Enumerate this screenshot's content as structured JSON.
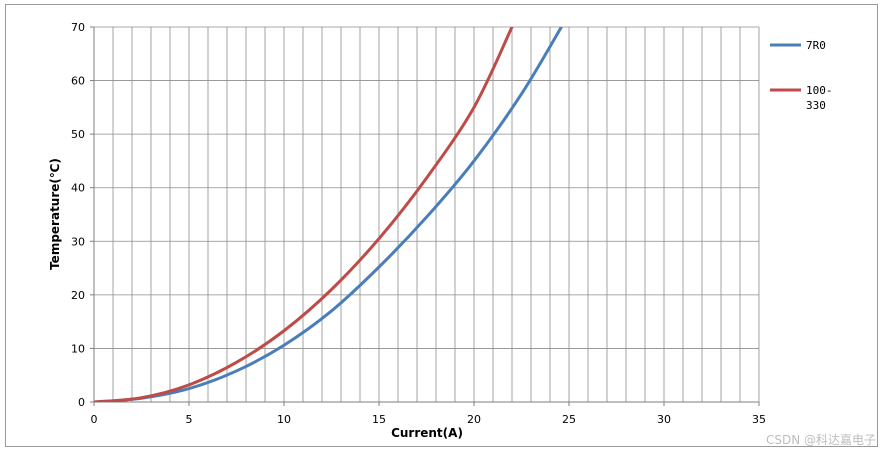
{
  "chart_data": {
    "type": "line",
    "title": "",
    "xlabel": "Current(A)",
    "ylabel": "Temperature(℃)",
    "xlim": [
      0,
      35
    ],
    "ylim": [
      0,
      70
    ],
    "x_ticks": [
      0,
      5,
      10,
      15,
      20,
      25,
      30,
      35
    ],
    "y_ticks": [
      0,
      10,
      20,
      30,
      40,
      50,
      60,
      70
    ],
    "grid": true,
    "legend_position": "right",
    "series": [
      {
        "name": "7R0",
        "color": "#4a7ebb",
        "x": [
          0,
          2.5,
          5,
          7.5,
          10,
          12.5,
          15,
          17.5,
          20,
          22.5,
          24.6
        ],
        "y": [
          0,
          0.7,
          2.5,
          5.8,
          10.6,
          17,
          25.2,
          34.5,
          45,
          57.5,
          70
        ]
      },
      {
        "name": "100-\n330",
        "color": "#be4b48",
        "x": [
          0,
          2.5,
          5,
          7.5,
          10,
          12.5,
          15,
          17.5,
          20,
          22
        ],
        "y": [
          0,
          0.8,
          3.2,
          7.4,
          13.3,
          21,
          30.5,
          41.8,
          55,
          70
        ]
      }
    ]
  },
  "watermark": "CSDN @科达嘉电子"
}
